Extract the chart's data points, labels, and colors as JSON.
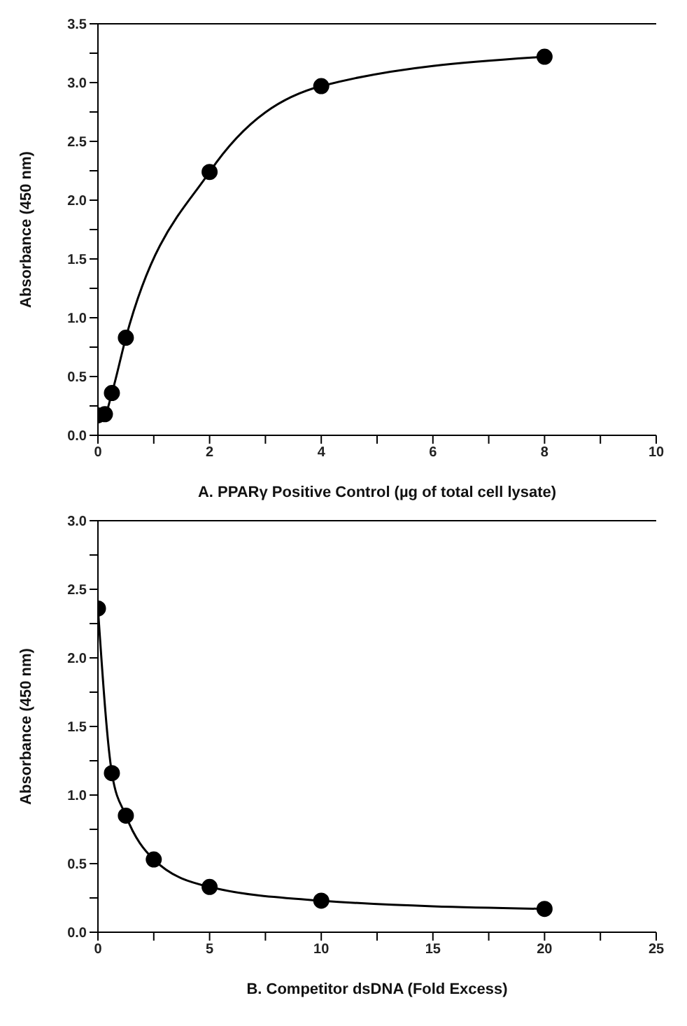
{
  "chart_data": [
    {
      "type": "line",
      "xlabel": "A. PPARγ Positive Control (µg of total cell lysate)",
      "ylabel": "Absorbance (450 nm)",
      "x": [
        0,
        0.125,
        0.25,
        0.5,
        2,
        4,
        8
      ],
      "series": [
        {
          "color": "#000000",
          "values": [
            0.17,
            0.18,
            0.36,
            0.83,
            2.24,
            2.97,
            3.22
          ]
        }
      ],
      "xlim": [
        0,
        10
      ],
      "xticks": [
        0,
        {
          "value": 1,
          "label": null
        },
        2,
        {
          "value": 3,
          "label": null
        },
        4,
        {
          "value": 5,
          "label": null
        },
        6,
        {
          "value": 7,
          "label": null
        },
        8,
        {
          "value": 9,
          "label": null
        },
        10
      ],
      "ylim": [
        0,
        3.5
      ],
      "yticks": [
        {
          "value": 0,
          "label": "0.0"
        },
        {
          "value": 0.25,
          "label": null
        },
        {
          "value": 0.5,
          "label": "0.5"
        },
        {
          "value": 0.75,
          "label": null
        },
        {
          "value": 1,
          "label": "1.0"
        },
        {
          "value": 1.25,
          "label": null
        },
        {
          "value": 1.5,
          "label": "1.5"
        },
        {
          "value": 1.75,
          "label": null
        },
        {
          "value": 2,
          "label": "2.0"
        },
        {
          "value": 2.25,
          "label": null
        },
        {
          "value": 2.5,
          "label": "2.5"
        },
        {
          "value": 2.75,
          "label": null
        },
        {
          "value": 3,
          "label": "3.0"
        },
        {
          "value": 3.25,
          "label": null
        },
        {
          "value": 3.5,
          "label": "3.5"
        }
      ],
      "marker": "circle",
      "line_style": "solid",
      "grid": false,
      "legend": false
    },
    {
      "type": "line",
      "xlabel": "B. Competitor dsDNA (Fold Excess)",
      "ylabel": "Absorbance (450 nm)",
      "x": [
        0,
        0.625,
        1.25,
        2.5,
        5,
        10,
        20
      ],
      "series": [
        {
          "color": "#000000",
          "values": [
            2.36,
            1.16,
            0.85,
            0.53,
            0.33,
            0.23,
            0.17
          ]
        }
      ],
      "xlim": [
        0,
        25
      ],
      "xticks": [
        0,
        {
          "value": 2.5,
          "label": null
        },
        5,
        {
          "value": 7.5,
          "label": null
        },
        10,
        {
          "value": 12.5,
          "label": null
        },
        15,
        {
          "value": 17.5,
          "label": null
        },
        20,
        {
          "value": 22.5,
          "label": null
        },
        25
      ],
      "ylim": [
        0,
        3
      ],
      "yticks": [
        {
          "value": 0,
          "label": "0.0"
        },
        {
          "value": 0.25,
          "label": null
        },
        {
          "value": 0.5,
          "label": "0.5"
        },
        {
          "value": 0.75,
          "label": null
        },
        {
          "value": 1,
          "label": "1.0"
        },
        {
          "value": 1.25,
          "label": null
        },
        {
          "value": 1.5,
          "label": "1.5"
        },
        {
          "value": 1.75,
          "label": null
        },
        {
          "value": 2,
          "label": "2.0"
        },
        {
          "value": 2.25,
          "label": null
        },
        {
          "value": 2.5,
          "label": "2.5"
        },
        {
          "value": 2.75,
          "label": null
        },
        {
          "value": 3,
          "label": "3.0"
        }
      ],
      "marker": "circle",
      "line_style": "solid",
      "grid": false,
      "legend": false
    }
  ]
}
